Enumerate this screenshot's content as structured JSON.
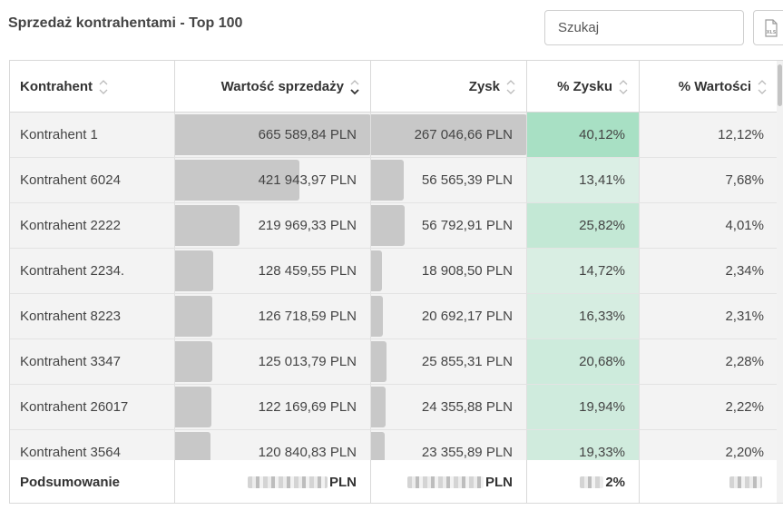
{
  "title": "Sprzedaż kontrahentami - Top 100",
  "search": {
    "placeholder": "Szukaj"
  },
  "export": {
    "icon": "xls-file-icon",
    "label": "XLS"
  },
  "columns": [
    "Kontrahent",
    "Wartość sprzedaży",
    "Zysk",
    "% Zysku",
    "% Wartości"
  ],
  "sort": {
    "active_column": "Wartość sprzedaży",
    "direction": "desc"
  },
  "rows": [
    {
      "name": "Kontrahent 1",
      "value": "665 589,84 PLN",
      "profit": "267 046,66 PLN",
      "profit_pct": "40,12%",
      "value_pct": "12,12%",
      "value_ratio": 1.0,
      "profit_ratio": 1.0,
      "highlight": 0.4012
    },
    {
      "name": "Kontrahent 6024",
      "value": "421 943,97 PLN",
      "profit": "56 565,39 PLN",
      "profit_pct": "13,41%",
      "value_pct": "7,68%",
      "value_ratio": 0.634,
      "profit_ratio": 0.212,
      "highlight": 0.1341
    },
    {
      "name": "Kontrahent 2222",
      "value": "219 969,33 PLN",
      "profit": "56 792,91 PLN",
      "profit_pct": "25,82%",
      "value_pct": "4,01%",
      "value_ratio": 0.33,
      "profit_ratio": 0.213,
      "highlight": 0.2582
    },
    {
      "name": "Kontrahent 2234.",
      "value": "128 459,55 PLN",
      "profit": "18 908,50 PLN",
      "profit_pct": "14,72%",
      "value_pct": "2,34%",
      "value_ratio": 0.193,
      "profit_ratio": 0.071,
      "highlight": 0.1472
    },
    {
      "name": "Kontrahent 8223",
      "value": "126 718,59 PLN",
      "profit": "20 692,17 PLN",
      "profit_pct": "16,33%",
      "value_pct": "2,31%",
      "value_ratio": 0.19,
      "profit_ratio": 0.077,
      "highlight": 0.1633
    },
    {
      "name": "Kontrahent 3347",
      "value": "125 013,79 PLN",
      "profit": "25 855,31 PLN",
      "profit_pct": "20,68%",
      "value_pct": "2,28%",
      "value_ratio": 0.188,
      "profit_ratio": 0.097,
      "highlight": 0.2068
    },
    {
      "name": "Kontrahent 26017",
      "value": "122 169,69 PLN",
      "profit": "24 355,88 PLN",
      "profit_pct": "19,94%",
      "value_pct": "2,22%",
      "value_ratio": 0.183,
      "profit_ratio": 0.091,
      "highlight": 0.1994
    },
    {
      "name": "Kontrahent 3564",
      "value": "120 840,83 PLN",
      "profit": "23 355,89 PLN",
      "profit_pct": "19,33%",
      "value_pct": "2,20%",
      "value_ratio": 0.182,
      "profit_ratio": 0.087,
      "highlight": 0.1933
    }
  ],
  "footer": {
    "label": "Podsumowanie",
    "value_suffix": "PLN",
    "profit_suffix": "PLN",
    "profit_pct_suffix": "2%"
  },
  "colors": {
    "bar": "#c8c8c8",
    "profit_pct_high": "#a8e0c4",
    "profit_pct_low": "#dcefe5",
    "row_bg": "#f3f3f3"
  }
}
